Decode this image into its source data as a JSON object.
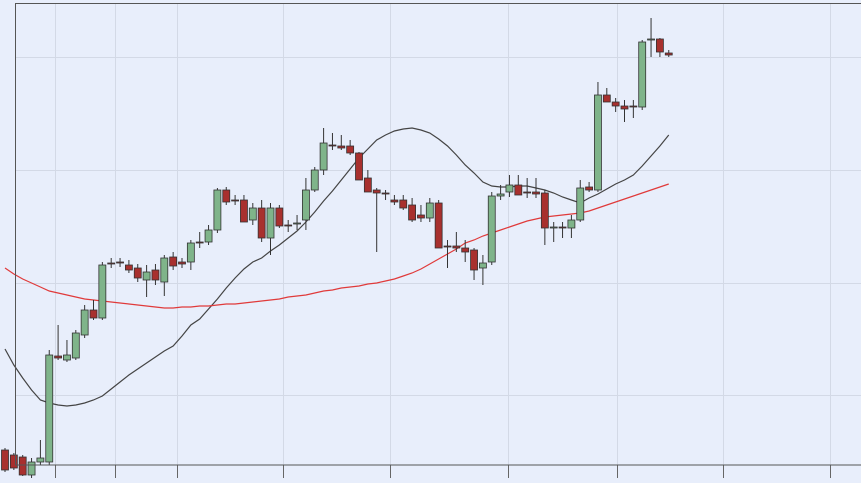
{
  "chart_data": {
    "type": "candlestick",
    "ylim": [
      0,
      483
    ],
    "up_color": "#7fb48a",
    "down_color": "#a8302e",
    "open": [
      33,
      28,
      26,
      8,
      21,
      21,
      127,
      123,
      125,
      148,
      173,
      165,
      220,
      221,
      218,
      215,
      203,
      213,
      201,
      226,
      221,
      221,
      241,
      241,
      253,
      293,
      283,
      283,
      263,
      275,
      245,
      275,
      258,
      259,
      263,
      293,
      313,
      338,
      337,
      337,
      330,
      305,
      293,
      290,
      283,
      283,
      278,
      268,
      265,
      280,
      237,
      237,
      235,
      233,
      215,
      221,
      287,
      291,
      298,
      291,
      291,
      290,
      255,
      256,
      255,
      263,
      296,
      293,
      388,
      381,
      377,
      377,
      376,
      443,
      444,
      430
    ],
    "high": [
      35,
      30,
      28,
      25,
      43,
      133,
      158,
      143,
      153,
      178,
      183,
      221,
      225,
      225,
      223,
      219,
      218,
      219,
      228,
      231,
      225,
      243,
      251,
      258,
      295,
      296,
      288,
      288,
      280,
      283,
      280,
      278,
      263,
      268,
      305,
      316,
      355,
      350,
      348,
      343,
      331,
      313,
      295,
      293,
      288,
      288,
      285,
      278,
      285,
      283,
      243,
      251,
      243,
      235,
      228,
      291,
      298,
      308,
      308,
      305,
      305,
      293,
      261,
      261,
      268,
      303,
      301,
      401,
      395,
      385,
      383,
      383,
      443,
      465,
      445,
      433
    ],
    "low": [
      11,
      13,
      7,
      5,
      18,
      18,
      123,
      121,
      123,
      145,
      163,
      163,
      215,
      216,
      210,
      201,
      186,
      198,
      187,
      213,
      215,
      213,
      235,
      238,
      250,
      278,
      278,
      261,
      258,
      241,
      228,
      255,
      251,
      253,
      253,
      291,
      308,
      333,
      333,
      328,
      303,
      291,
      231,
      283,
      278,
      273,
      261,
      261,
      261,
      235,
      215,
      231,
      221,
      203,
      198,
      218,
      283,
      286,
      288,
      285,
      285,
      238,
      241,
      245,
      245,
      261,
      291,
      291,
      381,
      371,
      361,
      365,
      373,
      426,
      426,
      426
    ],
    "close": [
      13,
      15,
      8,
      21,
      25,
      128,
      125,
      128,
      150,
      173,
      165,
      218,
      219,
      220,
      213,
      205,
      211,
      203,
      225,
      217,
      219,
      240,
      240,
      253,
      293,
      281,
      282,
      261,
      275,
      245,
      275,
      257,
      257,
      260,
      293,
      313,
      340,
      337,
      335,
      330,
      303,
      291,
      290,
      289,
      281,
      275,
      263,
      265,
      280,
      235,
      236,
      235,
      231,
      213,
      220,
      287,
      289,
      298,
      288,
      290,
      289,
      255,
      256,
      255,
      263,
      295,
      293,
      388,
      381,
      377,
      374,
      376,
      441,
      444,
      431,
      428
    ],
    "series": [
      {
        "color": "#444444",
        "values": [
          134,
          118,
          105,
          93,
          83,
          80,
          78,
          77,
          78,
          80,
          83,
          87,
          94,
          101,
          108,
          114,
          120,
          126,
          132,
          137,
          147,
          158,
          164,
          174,
          184,
          195,
          205,
          214,
          221,
          225,
          232,
          238,
          245,
          252,
          261,
          271,
          282,
          292,
          303,
          314,
          325,
          334,
          343,
          348,
          352,
          354,
          355,
          353,
          350,
          344,
          337,
          328,
          318,
          310,
          301,
          297,
          296,
          296,
          297,
          297,
          295,
          293,
          290,
          286,
          283,
          280,
          285,
          289,
          294,
          299,
          303,
          308,
          317,
          327,
          337,
          348
        ]
      },
      {
        "color": "#e03a3a",
        "values": [
          215,
          209,
          204,
          200,
          196,
          192,
          190,
          188,
          186,
          184,
          183,
          182,
          181,
          180,
          179,
          178,
          177,
          176,
          175,
          175,
          176,
          176,
          177,
          177,
          178,
          179,
          179,
          180,
          181,
          182,
          183,
          184,
          186,
          187,
          188,
          190,
          192,
          193,
          195,
          196,
          197,
          199,
          200,
          202,
          204,
          207,
          210,
          214,
          219,
          224,
          229,
          234,
          240,
          243,
          247,
          250,
          253,
          256,
          259,
          262,
          264,
          266,
          267,
          268,
          269,
          270,
          272,
          275,
          278,
          281,
          284,
          287,
          290,
          293,
          296,
          299
        ]
      }
    ]
  }
}
